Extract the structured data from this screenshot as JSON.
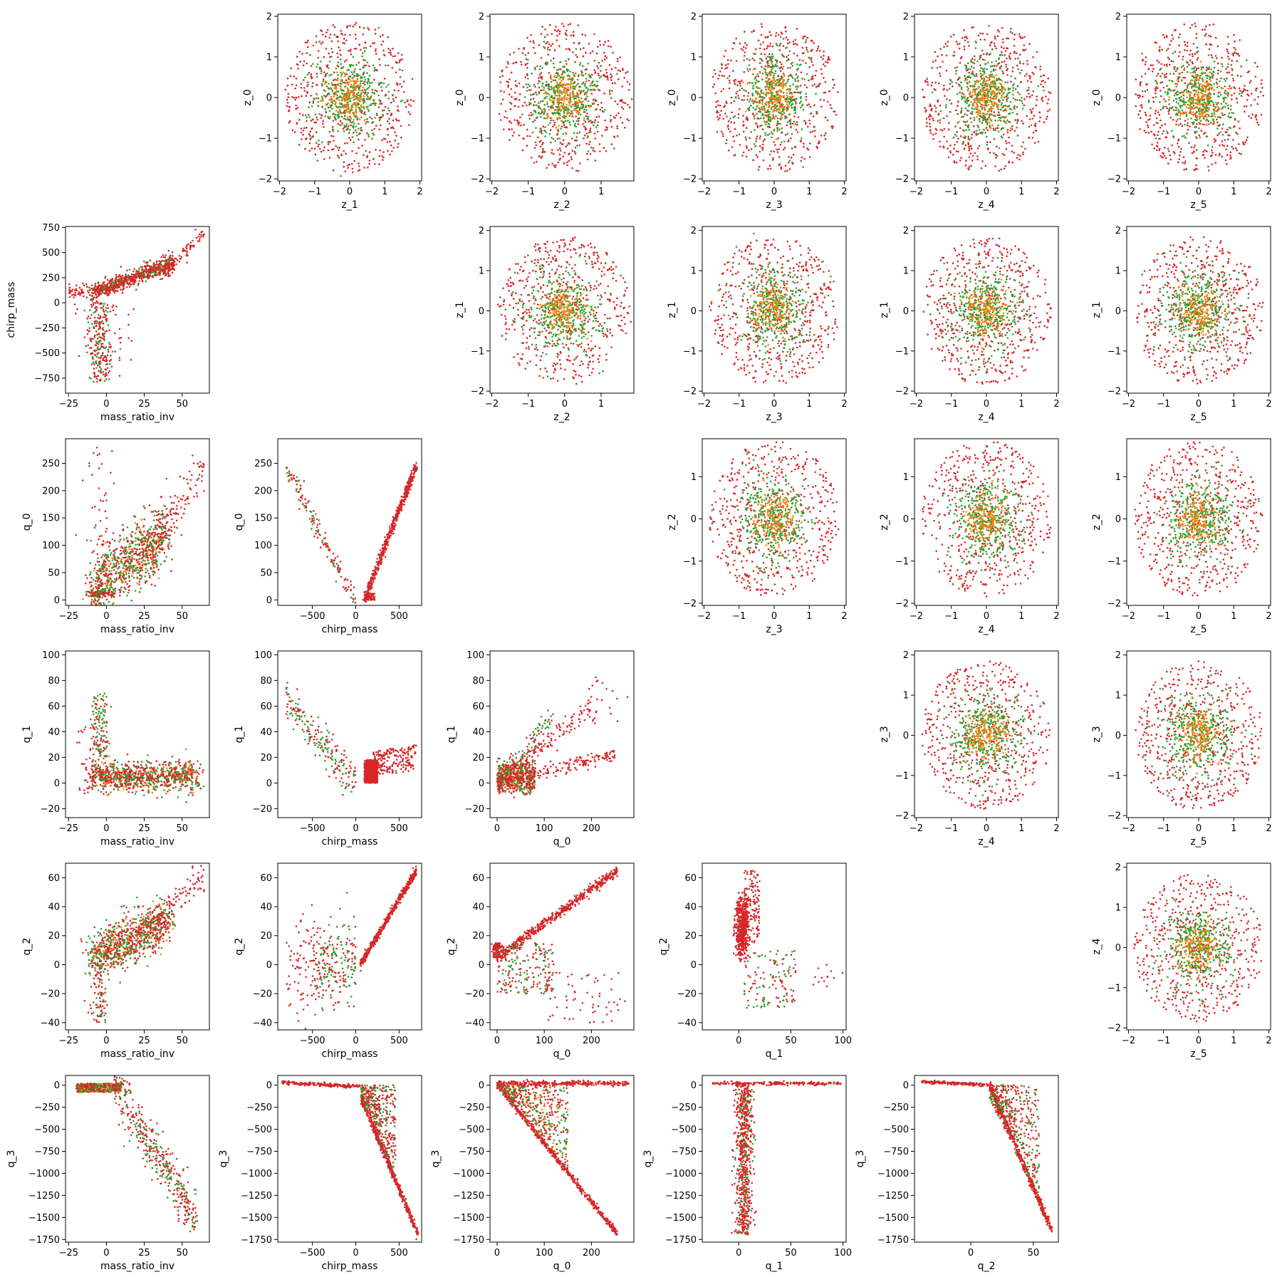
{
  "figure": {
    "type": "scatter-matrix",
    "colors": {
      "green": "#2ca02c",
      "orange": "#ff7f0e",
      "red": "#d62728"
    },
    "axes_defs": {
      "z": {
        "label": "z_*",
        "lim": [
          -2.05,
          2.05
        ],
        "ticks": [
          -2,
          -1,
          0,
          1,
          2
        ]
      },
      "z1": {
        "lim": [
          -2.05,
          2.1
        ],
        "ticks": [
          -2,
          -1,
          0,
          1,
          2
        ]
      },
      "z2": {
        "lim": [
          -2.05,
          1.9
        ],
        "ticks": [
          -2,
          -1,
          0,
          1
        ]
      },
      "mass_ratio_inv": {
        "lim": [
          -27,
          68
        ],
        "ticks": [
          -25,
          0,
          25,
          50
        ]
      },
      "chirp_mass": {
        "lim": [
          -900,
          760
        ],
        "ticks": [
          -500,
          0,
          500
        ]
      },
      "chirp_mass_y": {
        "lim": [
          -900,
          760
        ],
        "ticks": [
          -750,
          -500,
          -250,
          0,
          250,
          500,
          750
        ]
      },
      "q_0": {
        "lim": [
          -15,
          290
        ],
        "ticks": [
          0,
          100,
          200
        ]
      },
      "q_0_y": {
        "lim": [
          -10,
          295
        ],
        "ticks": [
          0,
          50,
          100,
          150,
          200,
          250
        ]
      },
      "q_1": {
        "lim": [
          -35,
          103
        ],
        "ticks": [
          0,
          50,
          100
        ]
      },
      "q_1_y": {
        "lim": [
          -27,
          103
        ],
        "ticks": [
          -20,
          0,
          20,
          40,
          60,
          80,
          100
        ]
      },
      "q_2": {
        "lim": [
          -45,
          70
        ],
        "ticks": [
          0,
          50
        ]
      },
      "q_2_y": {
        "lim": [
          -45,
          70
        ],
        "ticks": [
          -40,
          -20,
          0,
          20,
          40,
          60
        ]
      },
      "q_3_y": {
        "lim": [
          -1780,
          110
        ],
        "ticks": [
          0,
          -250,
          -500,
          -750,
          -1000,
          -1250,
          -1500,
          -1750
        ]
      }
    }
  },
  "chart_data": [
    {
      "type": "scatter",
      "panel": [
        0,
        1
      ],
      "xlabel": "z_1",
      "ylabel": "z_0",
      "xlim": [
        -2.05,
        2.05
      ],
      "ylim": [
        -2.05,
        2.05
      ],
      "pattern": "gaussian-cloud",
      "series": [
        {
          "name": "",
          "color": "#d62728",
          "count": 520
        },
        {
          "name": "",
          "color": "#2ca02c",
          "count": 380
        },
        {
          "name": "",
          "color": "#ff7f0e",
          "count": 160
        }
      ]
    },
    {
      "type": "scatter",
      "panel": [
        0,
        2
      ],
      "xlabel": "z_2",
      "ylabel": "z_0",
      "xlim": [
        -2.05,
        1.9
      ],
      "ylim": [
        -2.05,
        2.05
      ],
      "pattern": "gaussian-cloud"
    },
    {
      "type": "scatter",
      "panel": [
        0,
        3
      ],
      "xlabel": "z_3",
      "ylabel": "z_0",
      "xlim": [
        -2.05,
        2.05
      ],
      "ylim": [
        -2.05,
        2.05
      ],
      "pattern": "gaussian-cloud"
    },
    {
      "type": "scatter",
      "panel": [
        0,
        4
      ],
      "xlabel": "z_4",
      "ylabel": "z_0",
      "xlim": [
        -2.05,
        2.05
      ],
      "ylim": [
        -2.05,
        2.05
      ],
      "pattern": "gaussian-cloud"
    },
    {
      "type": "scatter",
      "panel": [
        0,
        5
      ],
      "xlabel": "z_5",
      "ylabel": "z_0",
      "xlim": [
        -2.05,
        2.05
      ],
      "ylim": [
        -2.05,
        2.05
      ],
      "pattern": "gaussian-cloud"
    },
    {
      "type": "scatter",
      "panel": [
        1,
        0
      ],
      "xlabel": "mass_ratio_inv",
      "ylabel": "chirp_mass",
      "xlim": [
        -27,
        68
      ],
      "ylim": [
        -900,
        760
      ],
      "pattern": "branch",
      "anchors": [
        [
          -22,
          120
        ],
        [
          0,
          100
        ],
        [
          25,
          250
        ],
        [
          50,
          450
        ],
        [
          64,
          720
        ]
      ],
      "lower_branch": [
        [
          -5,
          0
        ],
        [
          -4,
          -300
        ],
        [
          -3,
          -800
        ]
      ]
    },
    {
      "type": "scatter",
      "panel": [
        1,
        2
      ],
      "xlabel": "z_2",
      "ylabel": "z_1",
      "xlim": [
        -2.05,
        1.9
      ],
      "ylim": [
        -2.05,
        2.1
      ],
      "pattern": "gaussian-cloud"
    },
    {
      "type": "scatter",
      "panel": [
        1,
        3
      ],
      "xlabel": "z_3",
      "ylabel": "z_1",
      "xlim": [
        -2.05,
        2.05
      ],
      "ylim": [
        -2.05,
        2.1
      ],
      "pattern": "gaussian-cloud"
    },
    {
      "type": "scatter",
      "panel": [
        1,
        4
      ],
      "xlabel": "z_4",
      "ylabel": "z_1",
      "xlim": [
        -2.05,
        2.05
      ],
      "ylim": [
        -2.05,
        2.1
      ],
      "pattern": "gaussian-cloud"
    },
    {
      "type": "scatter",
      "panel": [
        1,
        5
      ],
      "xlabel": "z_5",
      "ylabel": "z_1",
      "xlim": [
        -2.05,
        2.05
      ],
      "ylim": [
        -2.05,
        2.1
      ],
      "pattern": "gaussian-cloud"
    },
    {
      "type": "scatter",
      "panel": [
        2,
        0
      ],
      "xlabel": "mass_ratio_inv",
      "ylabel": "q_0",
      "xlim": [
        -27,
        68
      ],
      "ylim": [
        -10,
        295
      ],
      "pattern": "cloud-rising"
    },
    {
      "type": "scatter",
      "panel": [
        2,
        1
      ],
      "xlabel": "chirp_mass",
      "ylabel": "q_0",
      "xlim": [
        -900,
        760
      ],
      "ylim": [
        -10,
        295
      ],
      "pattern": "v-shape",
      "anchors": [
        [
          -850,
          280
        ],
        [
          0,
          0
        ],
        [
          700,
          250
        ]
      ]
    },
    {
      "type": "scatter",
      "panel": [
        2,
        3
      ],
      "xlabel": "z_3",
      "ylabel": "z_2",
      "xlim": [
        -2.05,
        2.05
      ],
      "ylim": [
        -2.05,
        1.9
      ],
      "pattern": "gaussian-cloud"
    },
    {
      "type": "scatter",
      "panel": [
        2,
        4
      ],
      "xlabel": "z_4",
      "ylabel": "z_2",
      "xlim": [
        -2.05,
        2.05
      ],
      "ylim": [
        -2.05,
        1.9
      ],
      "pattern": "gaussian-cloud"
    },
    {
      "type": "scatter",
      "panel": [
        2,
        5
      ],
      "xlabel": "z_5",
      "ylabel": "z_2",
      "xlim": [
        -2.05,
        2.05
      ],
      "ylim": [
        -2.05,
        1.9
      ],
      "pattern": "gaussian-cloud"
    },
    {
      "type": "scatter",
      "panel": [
        3,
        0
      ],
      "xlabel": "mass_ratio_inv",
      "ylabel": "q_1",
      "xlim": [
        -27,
        68
      ],
      "ylim": [
        -27,
        103
      ],
      "pattern": "cloud-spike"
    },
    {
      "type": "scatter",
      "panel": [
        3,
        1
      ],
      "xlabel": "chirp_mass",
      "ylabel": "q_1",
      "xlim": [
        -900,
        760
      ],
      "ylim": [
        -27,
        103
      ],
      "pattern": "v-shape-flat"
    },
    {
      "type": "scatter",
      "panel": [
        3,
        2
      ],
      "xlabel": "q_0",
      "ylabel": "q_1",
      "xlim": [
        -15,
        290
      ],
      "ylim": [
        -27,
        103
      ],
      "pattern": "fan"
    },
    {
      "type": "scatter",
      "panel": [
        3,
        4
      ],
      "xlabel": "z_4",
      "ylabel": "z_3",
      "xlim": [
        -2.05,
        2.05
      ],
      "ylim": [
        -2.05,
        2.1
      ],
      "pattern": "gaussian-cloud"
    },
    {
      "type": "scatter",
      "panel": [
        3,
        5
      ],
      "xlabel": "z_5",
      "ylabel": "z_3",
      "xlim": [
        -2.05,
        2.05
      ],
      "ylim": [
        -2.05,
        2.1
      ],
      "pattern": "gaussian-cloud"
    },
    {
      "type": "scatter",
      "panel": [
        4,
        0
      ],
      "xlabel": "mass_ratio_inv",
      "ylabel": "q_2",
      "xlim": [
        -27,
        68
      ],
      "ylim": [
        -45,
        70
      ],
      "pattern": "cloud-rising"
    },
    {
      "type": "scatter",
      "panel": [
        4,
        1
      ],
      "xlabel": "chirp_mass",
      "ylabel": "q_2",
      "xlim": [
        -900,
        760
      ],
      "ylim": [
        -45,
        70
      ],
      "pattern": "line-plus-cloud",
      "anchors": [
        [
          50,
          0
        ],
        [
          700,
          65
        ]
      ]
    },
    {
      "type": "scatter",
      "panel": [
        4,
        2
      ],
      "xlabel": "q_0",
      "ylabel": "q_2",
      "xlim": [
        -15,
        290
      ],
      "ylim": [
        -45,
        70
      ],
      "pattern": "line-plus-cloud",
      "anchors": [
        [
          0,
          5
        ],
        [
          255,
          65
        ]
      ]
    },
    {
      "type": "scatter",
      "panel": [
        4,
        3
      ],
      "xlabel": "q_1",
      "ylabel": "q_2",
      "xlim": [
        -35,
        103
      ],
      "ylim": [
        -45,
        70
      ],
      "pattern": "spike-cluster"
    },
    {
      "type": "scatter",
      "panel": [
        4,
        5
      ],
      "xlabel": "z_5",
      "ylabel": "z_4",
      "xlim": [
        -2.05,
        2.05
      ],
      "ylim": [
        -2.05,
        2.1
      ],
      "pattern": "gaussian-cloud"
    },
    {
      "type": "scatter",
      "panel": [
        5,
        0
      ],
      "xlabel": "mass_ratio_inv",
      "ylabel": "q_3",
      "xlim": [
        -27,
        68
      ],
      "ylim": [
        -1780,
        110
      ],
      "pattern": "falling-band",
      "anchors": [
        [
          -20,
          0
        ],
        [
          10,
          -50
        ],
        [
          60,
          -1650
        ]
      ]
    },
    {
      "type": "scatter",
      "panel": [
        5,
        1
      ],
      "xlabel": "chirp_mass",
      "ylabel": "q_3",
      "xlim": [
        -900,
        760
      ],
      "ylim": [
        -1780,
        110
      ],
      "pattern": "flat-then-drop",
      "anchors": [
        [
          -850,
          30
        ],
        [
          50,
          0
        ],
        [
          720,
          -1680
        ]
      ]
    },
    {
      "type": "scatter",
      "panel": [
        5,
        2
      ],
      "xlabel": "q_0",
      "ylabel": "q_3",
      "xlim": [
        -15,
        290
      ],
      "ylim": [
        -1780,
        110
      ],
      "pattern": "wedge",
      "anchors": [
        [
          0,
          0
        ],
        [
          255,
          -1680
        ],
        [
          280,
          30
        ]
      ]
    },
    {
      "type": "scatter",
      "panel": [
        5,
        3
      ],
      "xlabel": "q_1",
      "ylabel": "q_3",
      "xlim": [
        -35,
        103
      ],
      "ylim": [
        -1780,
        110
      ],
      "pattern": "t-shape",
      "anchors": [
        [
          -20,
          20
        ],
        [
          100,
          20
        ],
        [
          10,
          -1680
        ]
      ]
    },
    {
      "type": "scatter",
      "panel": [
        5,
        4
      ],
      "xlabel": "q_2",
      "ylabel": "q_3",
      "xlim": [
        -45,
        70
      ],
      "ylim": [
        -1780,
        110
      ],
      "pattern": "flat-then-drop",
      "anchors": [
        [
          -40,
          40
        ],
        [
          15,
          0
        ],
        [
          65,
          -1680
        ]
      ]
    }
  ]
}
